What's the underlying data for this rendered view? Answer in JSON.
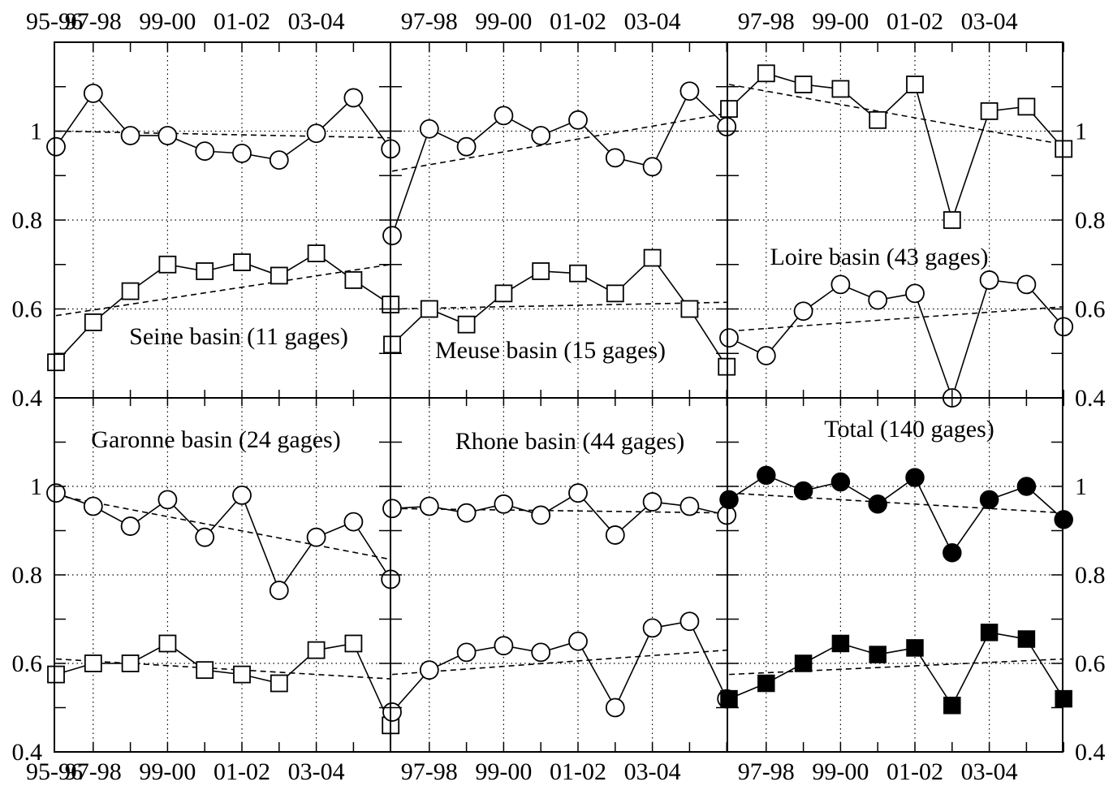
{
  "chart_data": {
    "type": "line",
    "layout": "2 rows x 3 columns of panels sharing axes",
    "x_tick_labels": [
      "95-96",
      "97-98",
      "99-00",
      "01-02",
      "03-04"
    ],
    "x_tick_labels_inner": [
      "97-98",
      "99-00",
      "01-02",
      "03-04"
    ],
    "y_tick_labels": [
      "0.4",
      "0.6",
      "0.8",
      "1"
    ],
    "ylim": [
      0.4,
      1.2
    ],
    "x_points": 10,
    "grid": "dotted",
    "panels": [
      {
        "title": "Seine basin (11 gages)",
        "series": [
          {
            "marker": "open-circle",
            "values": [
              0.965,
              1.085,
              0.99,
              0.99,
              0.955,
              0.95,
              0.935,
              0.995,
              1.075,
              0.96
            ],
            "trend": [
              1.0,
              0.985
            ]
          },
          {
            "marker": "open-square",
            "values": [
              0.48,
              0.57,
              0.64,
              0.7,
              0.685,
              0.705,
              0.675,
              0.725,
              0.665,
              0.61
            ],
            "trend": [
              0.585,
              0.7
            ]
          }
        ]
      },
      {
        "title": "Meuse basin (15 gages)",
        "series": [
          {
            "marker": "open-circle",
            "values": [
              0.765,
              1.005,
              0.965,
              1.035,
              0.99,
              1.025,
              0.94,
              0.92,
              1.09,
              1.01
            ],
            "trend": [
              0.91,
              1.04
            ]
          },
          {
            "marker": "open-square",
            "values": [
              0.52,
              0.6,
              0.565,
              0.635,
              0.685,
              0.68,
              0.635,
              0.715,
              0.6,
              0.47
            ],
            "trend": [
              0.6,
              0.615
            ]
          }
        ]
      },
      {
        "title": "Loire basin (43 gages)",
        "series": [
          {
            "marker": "open-square",
            "values": [
              1.05,
              1.13,
              1.105,
              1.095,
              1.025,
              1.105,
              0.8,
              1.045,
              1.055,
              0.96
            ],
            "trend": [
              1.105,
              0.97
            ]
          },
          {
            "marker": "open-circle",
            "values": [
              0.535,
              0.495,
              0.595,
              0.655,
              0.62,
              0.635,
              0.4,
              0.665,
              0.655,
              0.56
            ],
            "trend": [
              0.55,
              0.605
            ]
          }
        ]
      },
      {
        "title": "Garonne basin (24 gages)",
        "series": [
          {
            "marker": "open-circle",
            "values": [
              0.985,
              0.955,
              0.91,
              0.97,
              0.885,
              0.98,
              0.765,
              0.885,
              0.92,
              0.79
            ],
            "trend": [
              0.98,
              0.835
            ]
          },
          {
            "marker": "open-square",
            "values": [
              0.575,
              0.6,
              0.6,
              0.645,
              0.585,
              0.575,
              0.555,
              0.63,
              0.645,
              0.46
            ],
            "trend": [
              0.61,
              0.565
            ]
          }
        ]
      },
      {
        "title": "Rhone basin (44 gages)",
        "series": [
          {
            "marker": "open-circle",
            "values": [
              0.95,
              0.955,
              0.94,
              0.96,
              0.935,
              0.985,
              0.89,
              0.965,
              0.955,
              0.935
            ],
            "trend": [
              0.95,
              0.94
            ]
          },
          {
            "marker": "open-circle",
            "values": [
              0.49,
              0.585,
              0.625,
              0.64,
              0.625,
              0.65,
              0.5,
              0.68,
              0.695,
              0.52
            ],
            "trend": [
              0.575,
              0.63
            ]
          }
        ]
      },
      {
        "title": "Total (140 gages)",
        "series": [
          {
            "marker": "filled-circle",
            "values": [
              0.97,
              1.025,
              0.99,
              1.01,
              0.96,
              1.02,
              0.85,
              0.97,
              1.0,
              0.925
            ],
            "trend": [
              0.985,
              0.94
            ]
          },
          {
            "marker": "filled-square",
            "values": [
              0.52,
              0.555,
              0.6,
              0.645,
              0.62,
              0.635,
              0.505,
              0.67,
              0.655,
              0.52
            ],
            "trend": [
              0.575,
              0.61
            ]
          }
        ]
      }
    ]
  }
}
